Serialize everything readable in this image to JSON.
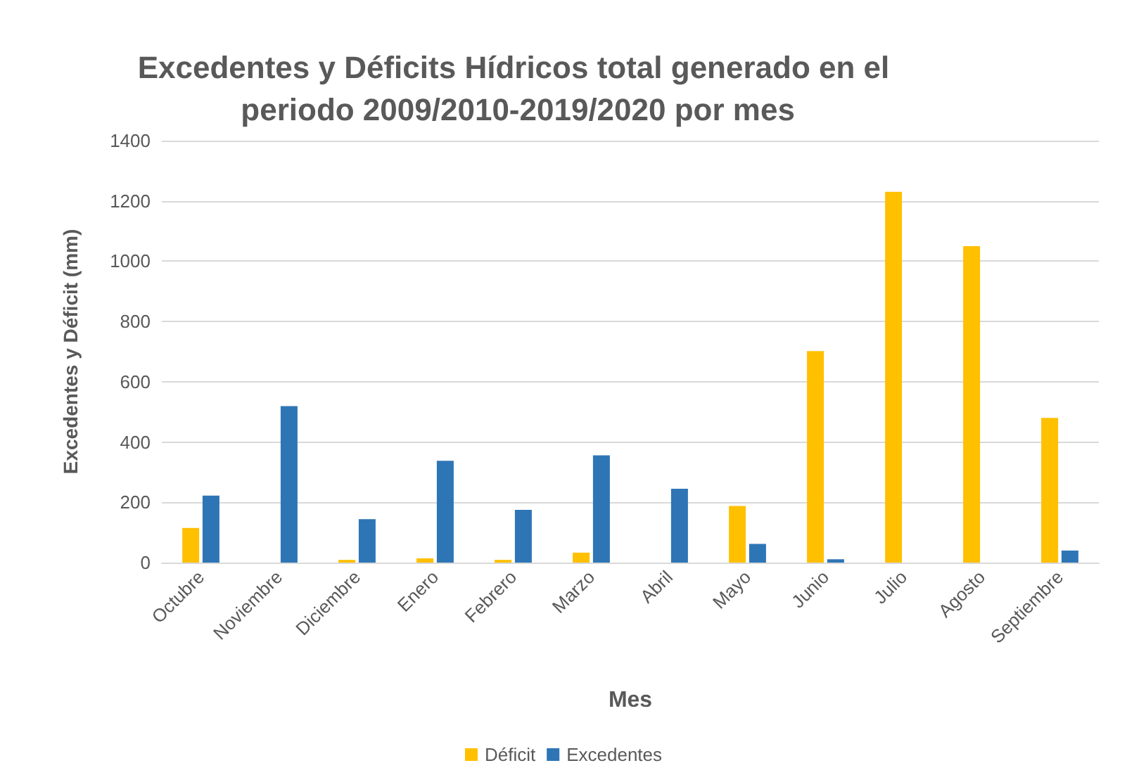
{
  "chart_data": {
    "type": "bar",
    "title": "Excedentes y Déficits Hídricos total generado en el periodo 2009/2010-2019/2020 por mes",
    "xlabel": "Mes",
    "ylabel": "Excedentes y Déficit (mm)",
    "categories": [
      "Octubre",
      "Noviembre",
      "Diciembre",
      "Enero",
      "Febrero",
      "Marzo",
      "Abril",
      "Mayo",
      "Junio",
      "Julio",
      "Agosto",
      "Septiembre"
    ],
    "series": [
      {
        "name": "Déficit",
        "color": "#ffc000",
        "values": [
          115,
          0,
          9,
          14,
          9,
          33,
          0,
          188,
          702,
          1230,
          1050,
          480
        ]
      },
      {
        "name": "Excedentes",
        "color": "#2e75b6",
        "values": [
          222,
          519,
          144,
          338,
          175,
          356,
          245,
          62,
          11,
          0,
          0,
          40
        ]
      }
    ],
    "ylim": [
      0,
      1400
    ],
    "yticks": [
      0,
      200,
      400,
      600,
      800,
      1000,
      1200,
      1400
    ],
    "grid": "y",
    "legend": "bottom"
  }
}
